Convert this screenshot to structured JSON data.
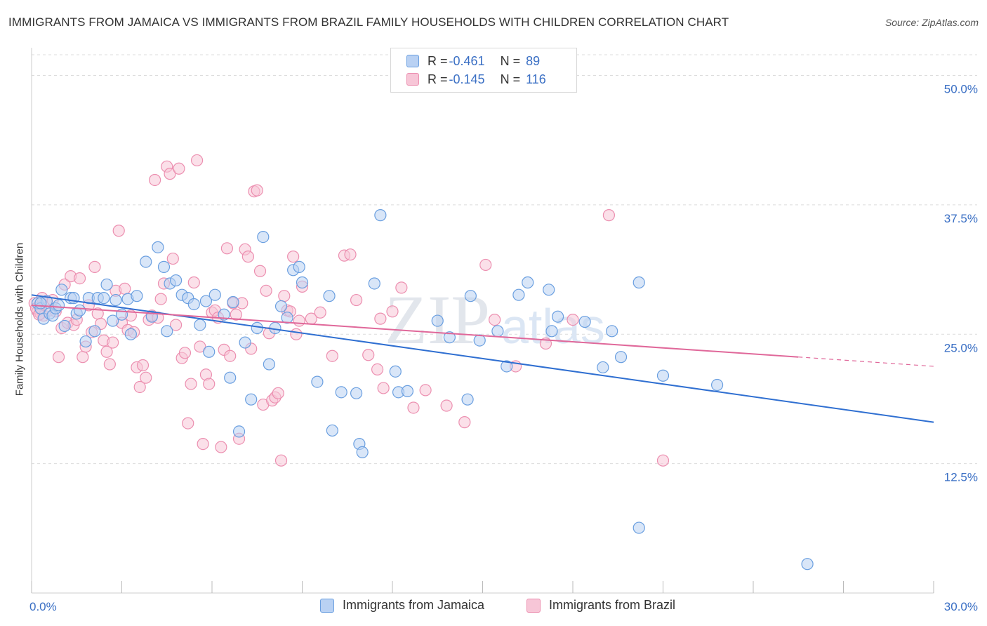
{
  "header": {
    "title": "IMMIGRANTS FROM JAMAICA VS IMMIGRANTS FROM BRAZIL FAMILY HOUSEHOLDS WITH CHILDREN CORRELATION CHART",
    "source": "Source: ZipAtlas.com"
  },
  "watermark": {
    "zip": "ZIP",
    "atlas": "atlas"
  },
  "legend": {
    "jamaica": {
      "r_label": "R = ",
      "r_value": "-0.461",
      "n_label": "N = ",
      "n_value": "89"
    },
    "brazil": {
      "r_label": "R = ",
      "r_value": "-0.145",
      "n_label": "N = ",
      "n_value": "116"
    }
  },
  "colors": {
    "jamaica": "#6a9fe0",
    "jamaica_fill": "#b9d1f3",
    "jamaica_line": "#2f6fd1",
    "brazil": "#ec8fb0",
    "brazil_fill": "#f7c6d7",
    "brazil_line": "#e0689a",
    "tick_label": "#3a6fc4"
  },
  "chart_data": {
    "type": "scatter",
    "title": "IMMIGRANTS FROM JAMAICA VS IMMIGRANTS FROM BRAZIL FAMILY HOUSEHOLDS WITH CHILDREN CORRELATION CHART",
    "xlabel": "",
    "ylabel": "Family Households with Children",
    "xlim": [
      0,
      30
    ],
    "ylim": [
      0,
      52
    ],
    "x_tick_labels": [
      "0.0%",
      "30.0%"
    ],
    "y_ticks": [
      12.5,
      25.0,
      37.5,
      50.0
    ],
    "y_tick_labels": [
      "12.5%",
      "25.0%",
      "37.5%",
      "50.0%"
    ],
    "grid": true,
    "series": [
      {
        "name": "Immigrants from Jamaica",
        "r": -0.461,
        "n": 89,
        "trend": {
          "x0": 0,
          "y0": 28.8,
          "x1": 30,
          "y1": 16.5
        },
        "points": [
          [
            0.2,
            28.0
          ],
          [
            0.3,
            27.5
          ],
          [
            0.4,
            26.5
          ],
          [
            0.5,
            28.2
          ],
          [
            0.6,
            27.0
          ],
          [
            0.7,
            26.8
          ],
          [
            0.8,
            27.5
          ],
          [
            0.9,
            27.8
          ],
          [
            1.0,
            29.3
          ],
          [
            1.1,
            25.8
          ],
          [
            1.3,
            28.5
          ],
          [
            1.4,
            28.5
          ],
          [
            1.5,
            27.0
          ],
          [
            1.6,
            27.3
          ],
          [
            1.8,
            24.3
          ],
          [
            1.9,
            28.5
          ],
          [
            2.1,
            25.3
          ],
          [
            2.2,
            28.5
          ],
          [
            2.4,
            28.5
          ],
          [
            2.5,
            29.8
          ],
          [
            2.7,
            26.3
          ],
          [
            2.8,
            28.3
          ],
          [
            3.0,
            26.9
          ],
          [
            3.2,
            28.4
          ],
          [
            3.3,
            25.0
          ],
          [
            3.5,
            28.7
          ],
          [
            3.8,
            32.0
          ],
          [
            4.0,
            26.7
          ],
          [
            4.2,
            33.4
          ],
          [
            4.4,
            31.5
          ],
          [
            4.5,
            25.3
          ],
          [
            4.6,
            29.9
          ],
          [
            4.8,
            30.2
          ],
          [
            5.0,
            28.8
          ],
          [
            5.2,
            28.5
          ],
          [
            5.4,
            27.9
          ],
          [
            5.6,
            25.9
          ],
          [
            5.8,
            28.2
          ],
          [
            5.9,
            23.3
          ],
          [
            6.1,
            28.8
          ],
          [
            6.4,
            26.9
          ],
          [
            6.6,
            20.8
          ],
          [
            6.7,
            28.1
          ],
          [
            6.9,
            15.6
          ],
          [
            7.1,
            24.2
          ],
          [
            7.3,
            18.7
          ],
          [
            7.5,
            25.6
          ],
          [
            7.7,
            34.4
          ],
          [
            7.9,
            22.1
          ],
          [
            8.1,
            25.6
          ],
          [
            8.3,
            27.7
          ],
          [
            8.5,
            26.6
          ],
          [
            8.7,
            31.2
          ],
          [
            8.9,
            31.5
          ],
          [
            9.0,
            30.0
          ],
          [
            9.5,
            20.4
          ],
          [
            9.9,
            28.7
          ],
          [
            10.0,
            15.7
          ],
          [
            10.3,
            19.4
          ],
          [
            10.8,
            19.3
          ],
          [
            10.9,
            14.4
          ],
          [
            11.0,
            13.6
          ],
          [
            11.4,
            29.9
          ],
          [
            11.6,
            36.5
          ],
          [
            12.1,
            21.4
          ],
          [
            12.2,
            19.4
          ],
          [
            12.5,
            19.5
          ],
          [
            13.5,
            26.3
          ],
          [
            13.9,
            24.7
          ],
          [
            14.5,
            18.7
          ],
          [
            14.6,
            28.7
          ],
          [
            14.9,
            24.4
          ],
          [
            15.5,
            25.3
          ],
          [
            15.8,
            21.9
          ],
          [
            16.2,
            28.8
          ],
          [
            16.5,
            30.0
          ],
          [
            17.2,
            29.3
          ],
          [
            17.3,
            25.3
          ],
          [
            17.5,
            26.7
          ],
          [
            18.4,
            26.2
          ],
          [
            19.0,
            21.8
          ],
          [
            19.3,
            25.3
          ],
          [
            19.6,
            22.8
          ],
          [
            20.2,
            6.3
          ],
          [
            20.2,
            30.0
          ],
          [
            21.0,
            21.0
          ],
          [
            22.8,
            20.1
          ],
          [
            25.8,
            2.8
          ],
          [
            0.3,
            28.0
          ]
        ]
      },
      {
        "name": "Immigrants from Brazil",
        "r": -0.145,
        "n": 116,
        "trend": {
          "x0": 0,
          "y0": 27.8,
          "x1": 25.5,
          "y1": 22.8
        },
        "trend_dashed": {
          "x0": 25.5,
          "y0": 22.8,
          "x1": 30,
          "y1": 21.9
        },
        "points": [
          [
            0.1,
            28.0
          ],
          [
            0.2,
            27.2
          ],
          [
            0.3,
            27.0
          ],
          [
            0.4,
            26.8
          ],
          [
            0.5,
            28.2
          ],
          [
            0.6,
            27.3
          ],
          [
            0.7,
            28.3
          ],
          [
            0.8,
            27.2
          ],
          [
            0.9,
            22.8
          ],
          [
            1.0,
            25.6
          ],
          [
            1.1,
            29.8
          ],
          [
            1.2,
            26.1
          ],
          [
            1.3,
            30.6
          ],
          [
            1.4,
            25.9
          ],
          [
            1.5,
            26.4
          ],
          [
            1.6,
            30.4
          ],
          [
            1.7,
            22.8
          ],
          [
            1.8,
            23.8
          ],
          [
            1.9,
            27.8
          ],
          [
            2.0,
            25.2
          ],
          [
            2.1,
            31.5
          ],
          [
            2.2,
            27.0
          ],
          [
            2.3,
            26.0
          ],
          [
            2.4,
            24.4
          ],
          [
            2.5,
            23.3
          ],
          [
            2.6,
            22.1
          ],
          [
            2.7,
            24.2
          ],
          [
            2.8,
            29.2
          ],
          [
            2.9,
            35.0
          ],
          [
            3.0,
            26.1
          ],
          [
            3.1,
            29.4
          ],
          [
            3.2,
            25.4
          ],
          [
            3.3,
            26.8
          ],
          [
            3.4,
            25.2
          ],
          [
            3.5,
            21.8
          ],
          [
            3.6,
            19.9
          ],
          [
            3.7,
            22.0
          ],
          [
            3.8,
            20.8
          ],
          [
            3.9,
            26.4
          ],
          [
            4.0,
            26.8
          ],
          [
            4.1,
            39.9
          ],
          [
            4.2,
            26.6
          ],
          [
            4.3,
            28.4
          ],
          [
            4.4,
            29.9
          ],
          [
            4.5,
            41.2
          ],
          [
            4.6,
            40.5
          ],
          [
            4.7,
            32.3
          ],
          [
            4.8,
            25.9
          ],
          [
            4.9,
            41.0
          ],
          [
            5.0,
            22.7
          ],
          [
            5.1,
            23.2
          ],
          [
            5.2,
            16.4
          ],
          [
            5.3,
            20.2
          ],
          [
            5.4,
            30.0
          ],
          [
            5.5,
            41.8
          ],
          [
            5.6,
            23.8
          ],
          [
            5.7,
            14.4
          ],
          [
            5.8,
            21.1
          ],
          [
            5.9,
            20.2
          ],
          [
            6.0,
            27.1
          ],
          [
            6.1,
            27.3
          ],
          [
            6.2,
            26.6
          ],
          [
            6.3,
            14.1
          ],
          [
            6.4,
            23.5
          ],
          [
            6.5,
            33.3
          ],
          [
            6.6,
            22.9
          ],
          [
            6.7,
            28.0
          ],
          [
            6.8,
            26.9
          ],
          [
            6.9,
            14.9
          ],
          [
            7.0,
            28.0
          ],
          [
            7.1,
            33.2
          ],
          [
            7.2,
            32.5
          ],
          [
            7.3,
            23.6
          ],
          [
            7.4,
            38.8
          ],
          [
            7.5,
            38.9
          ],
          [
            7.6,
            31.1
          ],
          [
            7.7,
            18.2
          ],
          [
            7.8,
            29.2
          ],
          [
            7.9,
            25.1
          ],
          [
            8.0,
            18.6
          ],
          [
            8.1,
            18.9
          ],
          [
            8.2,
            19.3
          ],
          [
            8.3,
            12.8
          ],
          [
            8.4,
            28.7
          ],
          [
            8.5,
            27.3
          ],
          [
            8.6,
            27.2
          ],
          [
            8.7,
            32.5
          ],
          [
            8.8,
            25.0
          ],
          [
            8.9,
            26.3
          ],
          [
            9.0,
            29.6
          ],
          [
            9.3,
            26.5
          ],
          [
            9.6,
            27.1
          ],
          [
            10.0,
            22.9
          ],
          [
            10.4,
            32.6
          ],
          [
            10.6,
            32.7
          ],
          [
            10.8,
            28.3
          ],
          [
            11.2,
            23.0
          ],
          [
            11.5,
            21.6
          ],
          [
            11.6,
            26.5
          ],
          [
            11.7,
            19.8
          ],
          [
            12.0,
            27.2
          ],
          [
            12.3,
            29.5
          ],
          [
            12.7,
            17.9
          ],
          [
            13.1,
            19.6
          ],
          [
            13.8,
            18.1
          ],
          [
            14.4,
            16.5
          ],
          [
            15.1,
            31.7
          ],
          [
            15.4,
            26.4
          ],
          [
            16.1,
            21.9
          ],
          [
            17.1,
            24.1
          ],
          [
            18.0,
            26.4
          ],
          [
            19.2,
            36.5
          ],
          [
            21.0,
            12.8
          ],
          [
            0.15,
            27.5
          ],
          [
            0.25,
            26.9
          ],
          [
            0.35,
            28.5
          ]
        ]
      }
    ]
  },
  "bottom_legend": {
    "jamaica_label": "Immigrants from Jamaica",
    "brazil_label": "Immigrants from Brazil"
  }
}
